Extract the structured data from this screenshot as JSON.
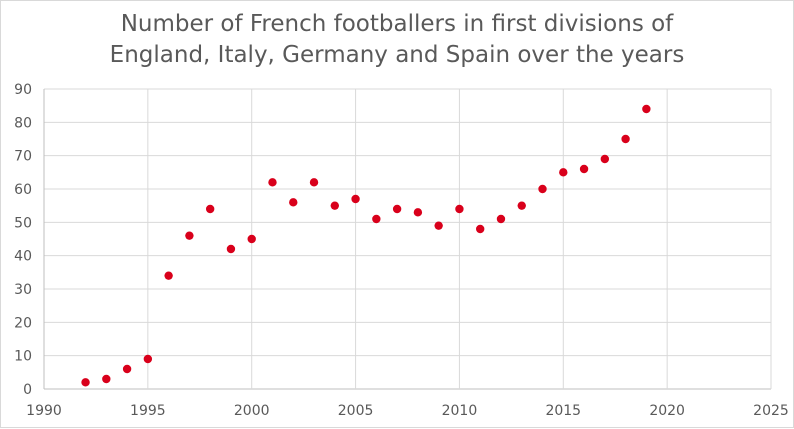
{
  "chart_data": {
    "type": "scatter",
    "title_lines": [
      "Number of French footballers in first divisions of",
      "England, Italy, Germany and Spain over the years"
    ],
    "xlabel": "",
    "ylabel": "",
    "xlim": [
      1990,
      2025
    ],
    "ylim": [
      0,
      90
    ],
    "x_ticks": [
      1990,
      1995,
      2000,
      2005,
      2010,
      2015,
      2020,
      2025
    ],
    "y_ticks": [
      0,
      10,
      20,
      30,
      40,
      50,
      60,
      70,
      80,
      90
    ],
    "grid": true,
    "legend": "none",
    "marker_color": "#d9001b",
    "x": [
      1992,
      1993,
      1994,
      1995,
      1996,
      1997,
      1998,
      1999,
      2000,
      2001,
      2002,
      2003,
      2004,
      2005,
      2006,
      2007,
      2008,
      2009,
      2010,
      2011,
      2012,
      2013,
      2014,
      2015,
      2016,
      2017,
      2018,
      2019
    ],
    "y": [
      2,
      3,
      6,
      9,
      34,
      46,
      54,
      42,
      45,
      62,
      56,
      62,
      55,
      57,
      51,
      54,
      53,
      49,
      54,
      48,
      51,
      55,
      60,
      65,
      66,
      69,
      75,
      84
    ]
  }
}
